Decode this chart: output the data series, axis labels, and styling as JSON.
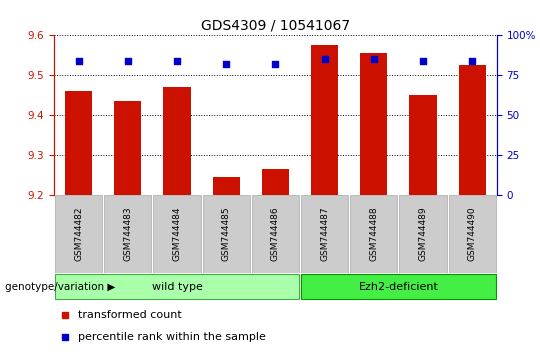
{
  "title": "GDS4309 / 10541067",
  "samples": [
    "GSM744482",
    "GSM744483",
    "GSM744484",
    "GSM744485",
    "GSM744486",
    "GSM744487",
    "GSM744488",
    "GSM744489",
    "GSM744490"
  ],
  "transformed_counts": [
    9.46,
    9.435,
    9.47,
    9.245,
    9.265,
    9.575,
    9.555,
    9.45,
    9.525
  ],
  "percentile_ranks": [
    84,
    84,
    84,
    82,
    82,
    85,
    85,
    84,
    84
  ],
  "ylim_left": [
    9.2,
    9.6
  ],
  "ylim_right": [
    0,
    100
  ],
  "yticks_left": [
    9.2,
    9.3,
    9.4,
    9.5,
    9.6
  ],
  "yticks_right": [
    0,
    25,
    50,
    75,
    100
  ],
  "bar_color": "#cc1100",
  "dot_color": "#0000cc",
  "title_fontsize": 10,
  "groups": [
    {
      "label": "wild type",
      "n": 5,
      "color": "#aaffaa"
    },
    {
      "label": "Ezh2-deficient",
      "n": 4,
      "color": "#44ee44"
    }
  ],
  "group_label": "genotype/variation",
  "legend_items": [
    {
      "label": "transformed count",
      "color": "#cc1100"
    },
    {
      "label": "percentile rank within the sample",
      "color": "#0000cc"
    }
  ],
  "axis_color_left": "#cc1100",
  "axis_color_right": "#0000cc",
  "bar_bottom": 9.2,
  "bar_width": 0.55,
  "tick_fontsize": 7.5,
  "sample_fontsize": 6.5,
  "group_fontsize": 8,
  "legend_fontsize": 8
}
